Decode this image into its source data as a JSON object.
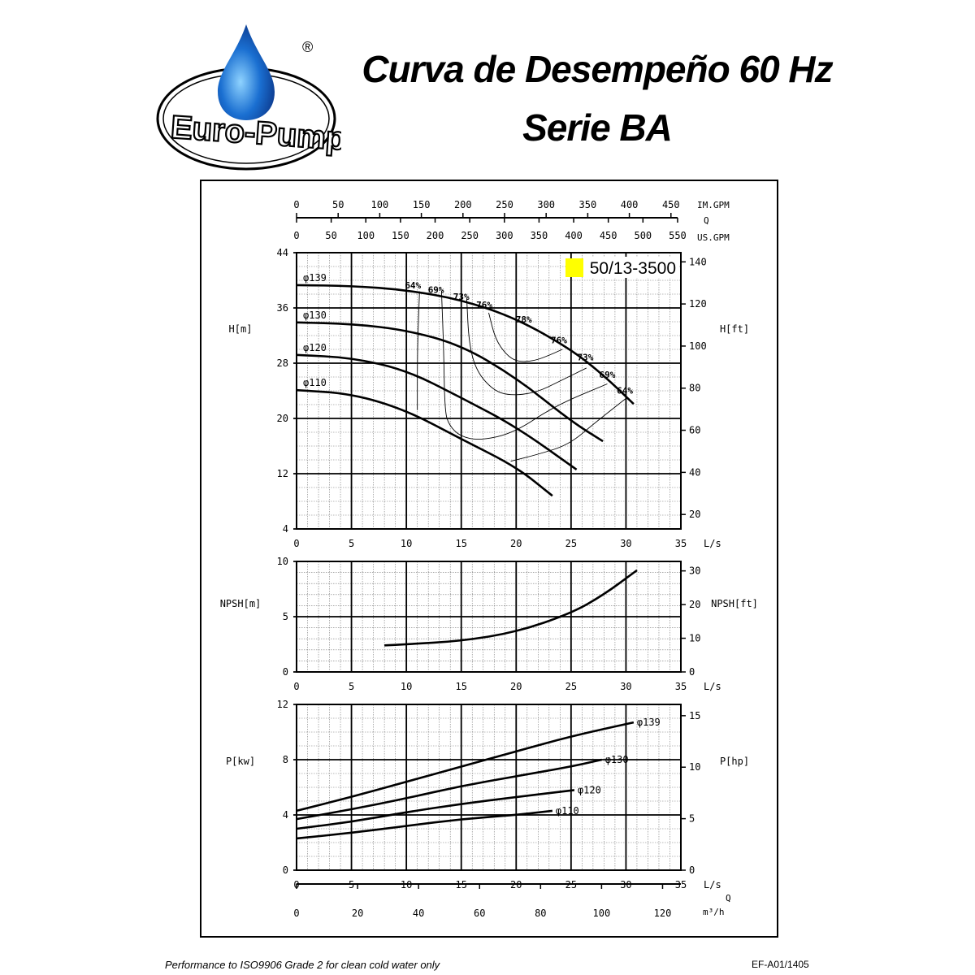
{
  "header": {
    "logo_text": "Euro-Pump",
    "logo_mark": "®",
    "title_line1": "Curva de Desempeño 60 Hz",
    "title_line2": "Serie BA"
  },
  "footer": {
    "note": "Performance to ISO9906 Grade 2 for clean cold water only",
    "code": "EF-A01/1405"
  },
  "colors": {
    "highlight": "#ffff00",
    "ink": "#000000",
    "logo_blue": "#1a6fd1"
  },
  "chart_data": [
    {
      "type": "line",
      "panel": "head",
      "model_label": "50/13-3500",
      "xlabel": "L/s",
      "ylabel": "H[m]",
      "ylabel_right": "H[ft]",
      "xlim": [
        0,
        35
      ],
      "ylim": [
        4,
        44
      ],
      "x_ticks": [
        0,
        5,
        10,
        15,
        20,
        25,
        30,
        35
      ],
      "y_ticks": [
        4,
        12,
        20,
        28,
        36,
        44
      ],
      "y_right_ticks": [
        20,
        40,
        60,
        80,
        100,
        120,
        140
      ],
      "top_axis": {
        "label": "Q",
        "im_gpm_label": "IM.GPM",
        "im_gpm_ticks": [
          0,
          50,
          100,
          150,
          200,
          250,
          300,
          350,
          400,
          450
        ],
        "us_gpm_label": "US.GPM",
        "us_gpm_ticks": [
          0,
          50,
          100,
          150,
          200,
          250,
          300,
          350,
          400,
          450,
          500,
          550
        ]
      },
      "grid": true,
      "series": [
        {
          "name": "φ139",
          "points": [
            [
              0,
              39.3
            ],
            [
              5,
              39.2
            ],
            [
              10,
              38.6
            ],
            [
              15,
              37.2
            ],
            [
              20,
              34.5
            ],
            [
              25,
              30.0
            ],
            [
              28,
              26.2
            ],
            [
              30.7,
              22.1
            ]
          ]
        },
        {
          "name": "φ130",
          "points": [
            [
              0,
              33.9
            ],
            [
              5,
              33.7
            ],
            [
              10,
              32.8
            ],
            [
              15,
              30.6
            ],
            [
              20,
              25.9
            ],
            [
              25,
              19.6
            ],
            [
              27.9,
              16.7
            ]
          ]
        },
        {
          "name": "φ120",
          "points": [
            [
              0,
              29.2
            ],
            [
              5,
              28.8
            ],
            [
              10,
              27.0
            ],
            [
              15,
              23.0
            ],
            [
              20,
              18.8
            ],
            [
              25.5,
              12.6
            ]
          ]
        },
        {
          "name": "φ110",
          "points": [
            [
              0,
              24.1
            ],
            [
              5,
              23.6
            ],
            [
              10,
              21.2
            ],
            [
              15,
              17.0
            ],
            [
              20,
              13.0
            ],
            [
              23.3,
              8.8
            ]
          ]
        }
      ],
      "efficiency_curves": [
        {
          "name": "64%",
          "points": [
            [
              11.2,
              38.4
            ],
            [
              11.0,
              30.0
            ],
            [
              11.0,
              21.2
            ]
          ]
        },
        {
          "name": "64%",
          "points": [
            [
              19.5,
              13.8
            ],
            [
              22.0,
              14.8
            ],
            [
              24.8,
              16.2
            ],
            [
              27.2,
              19.4
            ],
            [
              30.0,
              22.9
            ]
          ]
        },
        {
          "name": "69%",
          "points": [
            [
              13.2,
              38.4
            ],
            [
              13.4,
              30.0
            ],
            [
              13.5,
              21.0
            ],
            [
              13.9,
              19.0
            ],
            [
              14.9,
              17.4
            ],
            [
              16.7,
              16.8
            ],
            [
              19.8,
              17.9
            ],
            [
              23.5,
              21.8
            ],
            [
              28.3,
              25.0
            ]
          ]
        },
        {
          "name": "73%",
          "points": [
            [
              15.5,
              37.3
            ],
            [
              15.7,
              30.8
            ],
            [
              16.4,
              26.8
            ],
            [
              17.9,
              24.1
            ],
            [
              19.4,
              23.3
            ],
            [
              21.8,
              23.7
            ],
            [
              24.1,
              25.5
            ],
            [
              26.4,
              27.3
            ]
          ]
        },
        {
          "name": "76%",
          "points": [
            [
              17.5,
              35.3
            ],
            [
              18.1,
              31.5
            ],
            [
              19.1,
              29.2
            ],
            [
              20.1,
              28.2
            ],
            [
              21.6,
              28.3
            ],
            [
              23.1,
              29.2
            ],
            [
              24.2,
              30.0
            ]
          ]
        }
      ],
      "efficiency_labels": [
        {
          "text": "64%",
          "q": 10.6,
          "h": 38.8
        },
        {
          "text": "69%",
          "q": 12.7,
          "h": 38.2
        },
        {
          "text": "73%",
          "q": 15.0,
          "h": 37.2
        },
        {
          "text": "76%",
          "q": 17.1,
          "h": 36.0
        },
        {
          "text": "78%",
          "q": 20.7,
          "h": 33.9
        },
        {
          "text": "76%",
          "q": 23.9,
          "h": 30.9
        },
        {
          "text": "73%",
          "q": 26.3,
          "h": 28.4
        },
        {
          "text": "69%",
          "q": 28.3,
          "h": 25.9
        },
        {
          "text": "64%",
          "q": 29.9,
          "h": 23.6
        }
      ]
    },
    {
      "type": "line",
      "panel": "npsh",
      "xlabel": "L/s",
      "ylabel": "NPSH[m]",
      "ylabel_right": "NPSH[ft]",
      "xlim": [
        0,
        35
      ],
      "ylim": [
        0,
        10
      ],
      "x_ticks": [
        0,
        5,
        10,
        15,
        20,
        25,
        30,
        35
      ],
      "y_ticks": [
        0,
        5,
        10
      ],
      "y_right_ticks": [
        0,
        10,
        20,
        30
      ],
      "grid": true,
      "series": [
        {
          "points": [
            [
              8,
              2.4
            ],
            [
              10,
              2.5
            ],
            [
              15,
              2.8
            ],
            [
              20,
              3.6
            ],
            [
              25,
              5.3
            ],
            [
              28,
              7.0
            ],
            [
              31,
              9.2
            ]
          ]
        }
      ]
    },
    {
      "type": "line",
      "panel": "power",
      "xlabel": "L/s",
      "ylabel": "P[kw]",
      "ylabel_right": "P[hp]",
      "xlim": [
        0,
        35
      ],
      "ylim": [
        0,
        12
      ],
      "x_ticks": [
        0,
        5,
        10,
        15,
        20,
        25,
        30,
        35
      ],
      "y_ticks": [
        0,
        4,
        8,
        12
      ],
      "y_right_ticks": [
        0,
        5,
        10,
        15
      ],
      "bottom_axis": {
        "label": "Q",
        "unit": "m³/h",
        "ticks": [
          0,
          20,
          40,
          60,
          80,
          100,
          120
        ]
      },
      "grid": true,
      "series": [
        {
          "name": "φ139",
          "points": [
            [
              0,
              4.3
            ],
            [
              5,
              5.3
            ],
            [
              10,
              6.4
            ],
            [
              15,
              7.5
            ],
            [
              20,
              8.6
            ],
            [
              25,
              9.7
            ],
            [
              30.7,
              10.7
            ]
          ]
        },
        {
          "name": "φ130",
          "points": [
            [
              0,
              3.7
            ],
            [
              5,
              4.4
            ],
            [
              10,
              5.2
            ],
            [
              15,
              6.1
            ],
            [
              20,
              6.8
            ],
            [
              25,
              7.5
            ],
            [
              27.8,
              8.0
            ]
          ]
        },
        {
          "name": "φ120",
          "points": [
            [
              0,
              3.0
            ],
            [
              5,
              3.5
            ],
            [
              10,
              4.2
            ],
            [
              15,
              4.8
            ],
            [
              20,
              5.3
            ],
            [
              25.3,
              5.8
            ]
          ]
        },
        {
          "name": "φ110",
          "points": [
            [
              0,
              2.3
            ],
            [
              5,
              2.7
            ],
            [
              10,
              3.2
            ],
            [
              15,
              3.7
            ],
            [
              20,
              4.0
            ],
            [
              23.3,
              4.3
            ]
          ]
        }
      ]
    }
  ]
}
